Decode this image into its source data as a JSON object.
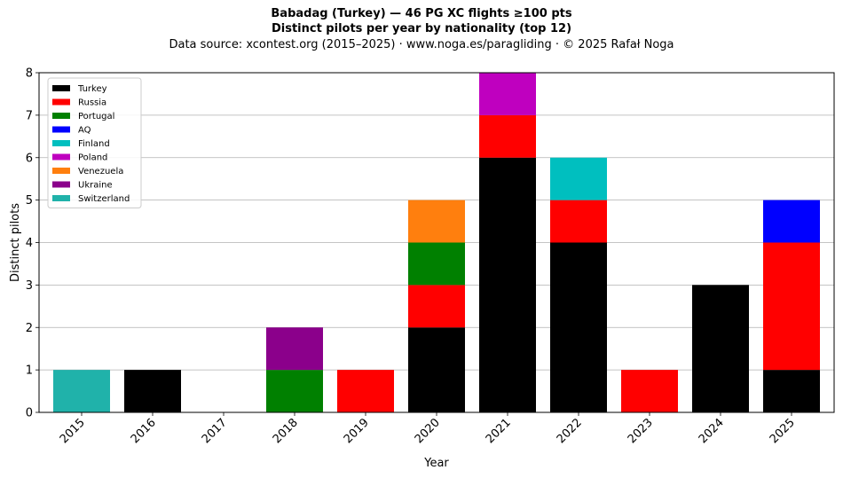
{
  "chart_data": {
    "type": "bar",
    "stacked": true,
    "title": "Babadag (Turkey)  —  46 PG XC flights ≥100 pts",
    "subtitle": "Distinct pilots per year by nationality (top 12)",
    "source_line": "Data source: xcontest.org (2015–2025)  ·  www.noga.es/paragliding  ·  © 2025 Rafał Noga",
    "xlabel": "Year",
    "ylabel": "Distinct pilots",
    "ylim": [
      0,
      8
    ],
    "yticks": [
      "0",
      "1",
      "2",
      "3",
      "4",
      "5",
      "6",
      "7",
      "8"
    ],
    "grid": "y",
    "legend_position": "top-left",
    "categories": [
      "2015",
      "2016",
      "2017",
      "2018",
      "2019",
      "2020",
      "2021",
      "2022",
      "2023",
      "2024",
      "2025"
    ],
    "series": [
      {
        "name": "Turkey",
        "color": "#000000",
        "values": [
          0,
          1,
          0,
          0,
          0,
          2,
          6,
          4,
          0,
          3,
          1
        ]
      },
      {
        "name": "Russia",
        "color": "#ff0000",
        "values": [
          0,
          0,
          0,
          0,
          1,
          1,
          1,
          1,
          1,
          0,
          3
        ]
      },
      {
        "name": "Portugal",
        "color": "#008000",
        "values": [
          0,
          0,
          0,
          1,
          0,
          1,
          0,
          0,
          0,
          0,
          0
        ]
      },
      {
        "name": "AQ",
        "color": "#0000ff",
        "values": [
          0,
          0,
          0,
          0,
          0,
          0,
          0,
          0,
          0,
          0,
          1
        ]
      },
      {
        "name": "Finland",
        "color": "#00bfbf",
        "values": [
          0,
          0,
          0,
          0,
          0,
          0,
          0,
          1,
          0,
          0,
          0
        ]
      },
      {
        "name": "Poland",
        "color": "#bf00bf",
        "values": [
          0,
          0,
          0,
          0,
          0,
          0,
          1,
          0,
          0,
          0,
          0
        ]
      },
      {
        "name": "Venezuela",
        "color": "#ff7f0e",
        "values": [
          0,
          0,
          0,
          0,
          0,
          1,
          0,
          0,
          0,
          0,
          0
        ]
      },
      {
        "name": "Ukraine",
        "color": "#8b008b",
        "values": [
          0,
          0,
          0,
          1,
          0,
          0,
          0,
          0,
          0,
          0,
          0
        ]
      },
      {
        "name": "Switzerland",
        "color": "#20b2aa",
        "values": [
          1,
          0,
          0,
          0,
          0,
          0,
          0,
          0,
          0,
          0,
          0
        ]
      }
    ]
  }
}
